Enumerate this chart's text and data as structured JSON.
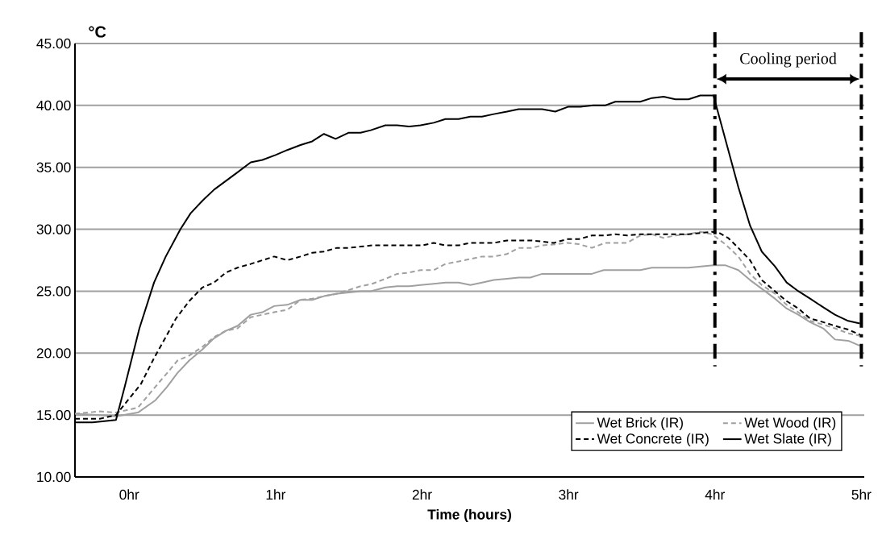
{
  "chart_data": {
    "type": "line",
    "xlabel": "Time (hours)",
    "ylabel": "°C",
    "xlim": [
      -0.37,
      5.02
    ],
    "ylim": [
      10,
      45
    ],
    "xticks": [
      {
        "value": 0,
        "label": "0hr"
      },
      {
        "value": 1,
        "label": "1hr"
      },
      {
        "value": 2,
        "label": "2hr"
      },
      {
        "value": 3,
        "label": "3hr"
      },
      {
        "value": 4,
        "label": "4hr"
      },
      {
        "value": 5,
        "label": "5hr"
      }
    ],
    "yticks": [
      {
        "value": 10,
        "label": "10.00"
      },
      {
        "value": 15,
        "label": "15.00"
      },
      {
        "value": 20,
        "label": "20.00"
      },
      {
        "value": 25,
        "label": "25.00"
      },
      {
        "value": 30,
        "label": "30.00"
      },
      {
        "value": 35,
        "label": "35.00"
      },
      {
        "value": 40,
        "label": "40.00"
      },
      {
        "value": 45,
        "label": "45.00"
      }
    ],
    "grid": "y",
    "legend": "bottom right",
    "marker": "none",
    "series": [
      {
        "name": "Wet Brick (IR)",
        "color": "#a0a0a0",
        "line_style": "solid",
        "x": [
          -0.37,
          -0.2,
          -0.09,
          0.06,
          0.18,
          0.26,
          0.33,
          0.41,
          0.5,
          0.58,
          0.66,
          0.74,
          0.83,
          0.91,
          0.99,
          1.08,
          1.17,
          1.25,
          1.33,
          1.42,
          1.5,
          1.58,
          1.65,
          1.75,
          1.83,
          1.91,
          1.99,
          2.08,
          2.16,
          2.25,
          2.33,
          2.41,
          2.49,
          2.58,
          2.66,
          2.74,
          2.82,
          3.16,
          3.24,
          3.49,
          3.57,
          3.82,
          3.99,
          4.07,
          4.16,
          4.24,
          4.32,
          4.41,
          4.49,
          4.57,
          4.65,
          4.74,
          4.82,
          4.91,
          4.99
        ],
        "values": [
          15.1,
          15.0,
          14.9,
          15.2,
          16.2,
          17.3,
          18.4,
          19.4,
          20.3,
          21.2,
          21.8,
          22.2,
          23.1,
          23.3,
          23.8,
          23.9,
          24.3,
          24.3,
          24.6,
          24.8,
          24.9,
          25.0,
          25.0,
          25.3,
          25.4,
          25.4,
          25.5,
          25.6,
          25.7,
          25.7,
          25.5,
          25.7,
          25.9,
          26.0,
          26.1,
          26.1,
          26.4,
          26.4,
          26.7,
          26.7,
          26.9,
          26.9,
          27.1,
          27.1,
          26.7,
          25.9,
          25.2,
          24.4,
          23.6,
          23.1,
          22.5,
          22.0,
          21.1,
          21.0,
          20.6
        ]
      },
      {
        "name": "Wet Wood (IR)",
        "color": "#a0a0a0",
        "line_style": "dashed",
        "x": [
          -0.37,
          -0.2,
          -0.09,
          0.06,
          0.18,
          0.26,
          0.33,
          0.41,
          0.5,
          0.58,
          0.66,
          0.74,
          0.83,
          0.91,
          0.99,
          1.08,
          1.17,
          1.25,
          1.33,
          1.42,
          1.5,
          1.58,
          1.66,
          1.75,
          1.83,
          1.91,
          1.99,
          2.08,
          2.16,
          2.25,
          2.33,
          2.41,
          2.49,
          2.58,
          2.66,
          2.75,
          2.82,
          2.92,
          2.99,
          3.07,
          3.16,
          3.25,
          3.4,
          3.49,
          3.57,
          3.65,
          3.73,
          3.82,
          3.9,
          3.98,
          4.07,
          4.16,
          4.24,
          4.32,
          4.41,
          4.49,
          4.57,
          4.65,
          4.74,
          4.82,
          4.91,
          4.99
        ],
        "values": [
          15.1,
          15.3,
          15.2,
          15.6,
          17.3,
          18.4,
          19.4,
          19.8,
          20.5,
          21.3,
          21.8,
          22.0,
          22.9,
          23.1,
          23.3,
          23.5,
          24.3,
          24.4,
          24.6,
          24.8,
          25.1,
          25.4,
          25.6,
          26.0,
          26.4,
          26.5,
          26.7,
          26.7,
          27.2,
          27.4,
          27.6,
          27.8,
          27.8,
          28.0,
          28.5,
          28.5,
          28.7,
          28.8,
          28.9,
          28.8,
          28.5,
          28.9,
          28.9,
          29.5,
          29.6,
          29.3,
          29.5,
          29.6,
          29.8,
          29.6,
          28.8,
          27.8,
          26.4,
          25.5,
          24.8,
          23.9,
          23.3,
          22.6,
          22.3,
          22.0,
          21.6,
          21.4
        ]
      },
      {
        "name": "Wet Concrete (IR)",
        "color": "#000000",
        "line_style": "dashed",
        "x": [
          -0.37,
          -0.2,
          -0.09,
          0.08,
          0.17,
          0.25,
          0.32,
          0.41,
          0.5,
          0.58,
          0.66,
          0.74,
          0.83,
          0.91,
          0.99,
          1.08,
          1.17,
          1.25,
          1.33,
          1.42,
          1.5,
          1.58,
          1.66,
          2.0,
          2.08,
          2.16,
          2.25,
          2.33,
          2.49,
          2.58,
          2.75,
          2.9,
          2.99,
          3.07,
          3.16,
          3.25,
          3.32,
          3.4,
          3.49,
          3.82,
          3.98,
          4.03,
          4.09,
          4.16,
          4.24,
          4.32,
          4.41,
          4.49,
          4.57,
          4.65,
          4.74,
          4.82,
          4.91,
          4.99
        ],
        "values": [
          14.7,
          14.7,
          15.0,
          17.5,
          19.6,
          21.3,
          22.8,
          24.2,
          25.3,
          25.7,
          26.5,
          26.9,
          27.2,
          27.5,
          27.8,
          27.5,
          27.8,
          28.1,
          28.2,
          28.5,
          28.5,
          28.6,
          28.7,
          28.7,
          28.9,
          28.7,
          28.7,
          28.9,
          28.9,
          29.1,
          29.1,
          28.9,
          29.2,
          29.2,
          29.5,
          29.5,
          29.6,
          29.5,
          29.6,
          29.6,
          29.8,
          29.7,
          29.3,
          28.5,
          27.5,
          25.9,
          25.0,
          24.2,
          23.6,
          22.8,
          22.5,
          22.2,
          21.9,
          21.5
        ]
      },
      {
        "name": "Wet Slate (IR)",
        "color": "#000000",
        "line_style": "solid",
        "x": [
          -0.37,
          -0.25,
          -0.09,
          -0.03,
          0.07,
          0.17,
          0.25,
          0.35,
          0.42,
          0.5,
          0.58,
          0.66,
          0.74,
          0.83,
          0.91,
          1.0,
          1.08,
          1.17,
          1.25,
          1.33,
          1.41,
          1.5,
          1.58,
          1.65,
          1.75,
          1.83,
          1.91,
          1.99,
          2.08,
          2.16,
          2.25,
          2.33,
          2.41,
          2.49,
          2.58,
          2.66,
          2.82,
          2.91,
          3.0,
          3.08,
          3.17,
          3.25,
          3.32,
          3.49,
          3.57,
          3.65,
          3.73,
          3.82,
          3.9,
          3.99,
          4.16,
          4.24,
          4.32,
          4.41,
          4.49,
          4.57,
          4.65,
          4.74,
          4.82,
          4.91,
          4.99
        ],
        "values": [
          14.4,
          14.4,
          14.6,
          17.3,
          22.0,
          25.7,
          27.8,
          30.0,
          31.3,
          32.3,
          33.2,
          33.9,
          34.6,
          35.4,
          35.6,
          36.0,
          36.4,
          36.8,
          37.1,
          37.7,
          37.3,
          37.8,
          37.8,
          38.0,
          38.4,
          38.4,
          38.3,
          38.4,
          38.6,
          38.9,
          38.9,
          39.1,
          39.1,
          39.3,
          39.5,
          39.7,
          39.7,
          39.5,
          39.9,
          39.9,
          40.0,
          40.0,
          40.3,
          40.3,
          40.6,
          40.7,
          40.5,
          40.5,
          40.8,
          40.8,
          33.4,
          30.3,
          28.2,
          27.0,
          25.7,
          25.0,
          24.4,
          23.7,
          23.1,
          22.6,
          22.4
        ]
      }
    ],
    "ref_lines": [
      {
        "axis": "x",
        "value": 4,
        "color": "#000000",
        "line_style": "dashdot"
      },
      {
        "axis": "x",
        "value": 5,
        "color": "#000000",
        "line_style": "dashdot"
      }
    ],
    "annotations": [
      "Cooling period"
    ]
  }
}
